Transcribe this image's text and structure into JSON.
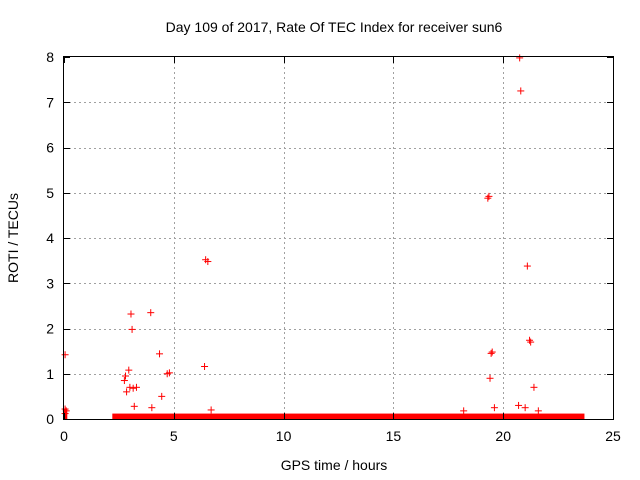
{
  "chart_data": {
    "type": "scatter",
    "title": "Day 109 of 2017, Rate Of TEC Index for receiver sun6",
    "xlabel": "GPS time / hours",
    "ylabel": "ROTI / TECUs",
    "xlim": [
      0,
      25
    ],
    "ylim": [
      0,
      8
    ],
    "x_ticks": [
      0,
      5,
      10,
      15,
      20,
      25
    ],
    "y_ticks": [
      0,
      1,
      2,
      3,
      4,
      5,
      6,
      7,
      8
    ],
    "grid": true,
    "marker": "+",
    "color": "#ff0000",
    "dense_baseline_segments": [
      {
        "x_start": 0.0,
        "x_end": 0.15,
        "y_max": 0.22
      },
      {
        "x_start": 2.2,
        "x_end": 23.7,
        "y_max": 0.12
      }
    ],
    "points": [
      {
        "x": 0.05,
        "y": 1.42
      },
      {
        "x": 0.05,
        "y": 0.22
      },
      {
        "x": 0.1,
        "y": 0.18
      },
      {
        "x": 0.05,
        "y": 0.12
      },
      {
        "x": 2.75,
        "y": 0.85
      },
      {
        "x": 2.8,
        "y": 0.95
      },
      {
        "x": 2.85,
        "y": 0.6
      },
      {
        "x": 2.95,
        "y": 1.08
      },
      {
        "x": 3.0,
        "y": 0.7
      },
      {
        "x": 3.05,
        "y": 2.32
      },
      {
        "x": 3.1,
        "y": 1.98
      },
      {
        "x": 3.15,
        "y": 0.68
      },
      {
        "x": 3.2,
        "y": 0.28
      },
      {
        "x": 3.3,
        "y": 0.7
      },
      {
        "x": 3.95,
        "y": 2.35
      },
      {
        "x": 4.0,
        "y": 0.25
      },
      {
        "x": 4.35,
        "y": 1.44
      },
      {
        "x": 4.45,
        "y": 0.5
      },
      {
        "x": 4.7,
        "y": 1.0
      },
      {
        "x": 4.8,
        "y": 1.02
      },
      {
        "x": 6.4,
        "y": 1.16
      },
      {
        "x": 6.45,
        "y": 3.52
      },
      {
        "x": 6.55,
        "y": 3.48
      },
      {
        "x": 6.7,
        "y": 0.2
      },
      {
        "x": 18.2,
        "y": 0.18
      },
      {
        "x": 19.3,
        "y": 4.88
      },
      {
        "x": 19.35,
        "y": 4.92
      },
      {
        "x": 19.4,
        "y": 0.9
      },
      {
        "x": 19.45,
        "y": 1.45
      },
      {
        "x": 19.5,
        "y": 1.48
      },
      {
        "x": 19.6,
        "y": 0.25
      },
      {
        "x": 20.7,
        "y": 0.3
      },
      {
        "x": 20.75,
        "y": 7.98
      },
      {
        "x": 20.8,
        "y": 7.25
      },
      {
        "x": 21.0,
        "y": 0.25
      },
      {
        "x": 21.1,
        "y": 3.38
      },
      {
        "x": 21.2,
        "y": 1.74
      },
      {
        "x": 21.25,
        "y": 1.7
      },
      {
        "x": 21.4,
        "y": 0.7
      },
      {
        "x": 21.6,
        "y": 0.18
      }
    ]
  }
}
